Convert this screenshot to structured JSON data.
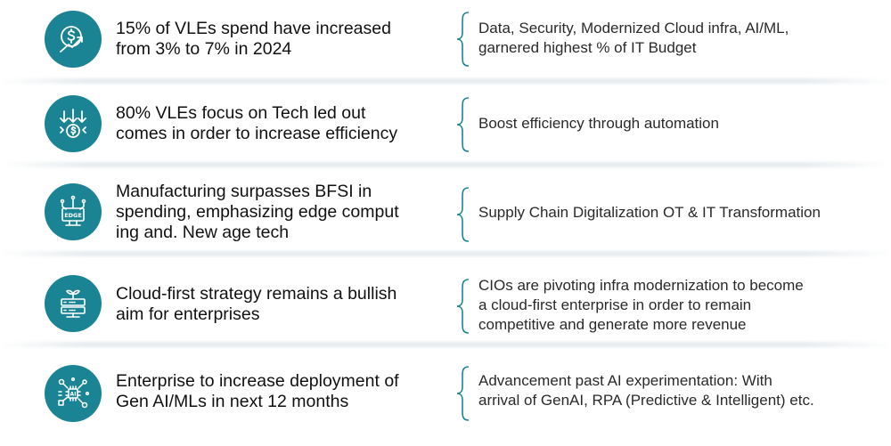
{
  "colors": {
    "accent": "#1b8494",
    "brace": "#1b8494"
  },
  "rows": [
    {
      "icon": "dollar-growth-icon",
      "headline": "15% of VLEs spend have increased\nfrom 3% to 7% in 2024",
      "detail": "Data, Security, Modernized Cloud infra, AI/ML,\ngarnered highest % of IT Budget"
    },
    {
      "icon": "downward-arrows-dollar-icon",
      "headline": "80% VLEs focus on Tech led out\ncomes in order to increase efficiency",
      "detail": "Boost efficiency through automation"
    },
    {
      "icon": "edge-computing-icon",
      "headline": "Manufacturing surpasses BFSI in\nspending, emphasizing edge comput\ning and. New age tech",
      "detail": "Supply Chain Digitalization OT & IT Transformation"
    },
    {
      "icon": "cloud-server-icon",
      "headline": "Cloud-first strategy remains a bullish\naim for enterprises",
      "detail": "CIOs are pivoting infra modernization to become\n a  cloud-first enterprise in order to remain\ncompetitive  and generate more revenue"
    },
    {
      "icon": "ai-network-icon",
      "headline": "Enterprise to increase deployment of\nGen AI/MLs in next 12 months",
      "detail": "Advancement past AI experimentation: With\narrival  of GenAI, RPA (Predictive & Intelligent) etc."
    }
  ]
}
